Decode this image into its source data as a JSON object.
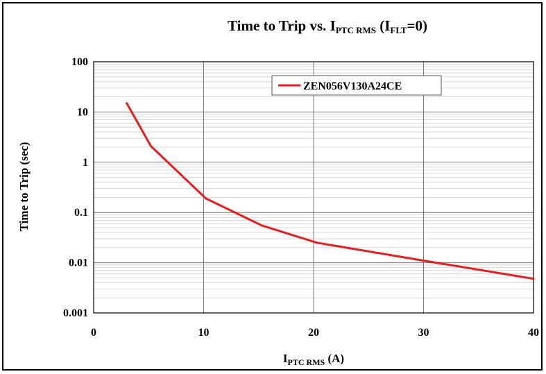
{
  "chart_data": {
    "type": "line",
    "title": {
      "prefix": "Time to Trip vs. I",
      "sub1": "PTC RMS",
      "middle": " (I",
      "sub2": "FLT",
      "suffix": "=0)"
    },
    "xlabel": {
      "main": "I",
      "sub": "PTC RMS",
      "suffix": " (A)"
    },
    "ylabel": "Time to Trip (sec)",
    "x_scale": "linear",
    "y_scale": "log",
    "xlim": [
      0,
      40
    ],
    "ylim": [
      0.001,
      100
    ],
    "x_ticks": [
      {
        "value": 0,
        "label": "0"
      },
      {
        "value": 10,
        "label": "10"
      },
      {
        "value": 20,
        "label": "20"
      },
      {
        "value": 30,
        "label": "30"
      },
      {
        "value": 40,
        "label": "40"
      }
    ],
    "y_ticks": [
      {
        "value": 100,
        "label": "100"
      },
      {
        "value": 10,
        "label": "10"
      },
      {
        "value": 1,
        "label": "1"
      },
      {
        "value": 0.1,
        "label": "0.1"
      },
      {
        "value": 0.01,
        "label": "0.01"
      },
      {
        "value": 0.001,
        "label": "0.001"
      }
    ],
    "grid": true,
    "legend_position": "top-right",
    "series": [
      {
        "name": "ZEN056V130A24CE",
        "color": "#e81c1c",
        "x": [
          3,
          5.2,
          10.2,
          15.3,
          20.3,
          30,
          40
        ],
        "y": [
          15,
          2.1,
          0.19,
          0.055,
          0.025,
          0.011,
          0.0048
        ]
      }
    ]
  }
}
